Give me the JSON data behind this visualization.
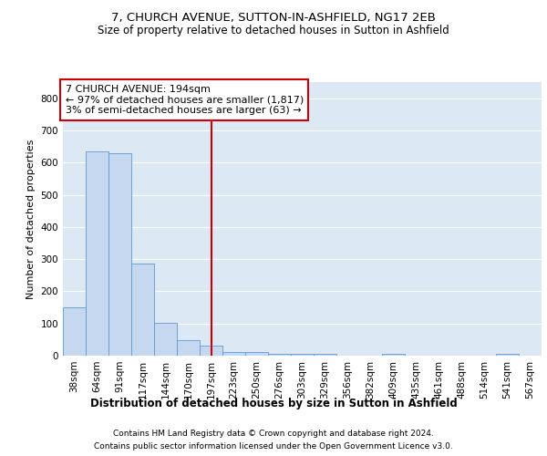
{
  "title1": "7, CHURCH AVENUE, SUTTON-IN-ASHFIELD, NG17 2EB",
  "title2": "Size of property relative to detached houses in Sutton in Ashfield",
  "xlabel": "Distribution of detached houses by size in Sutton in Ashfield",
  "ylabel": "Number of detached properties",
  "categories": [
    "38sqm",
    "64sqm",
    "91sqm",
    "117sqm",
    "144sqm",
    "170sqm",
    "197sqm",
    "223sqm",
    "250sqm",
    "276sqm",
    "303sqm",
    "329sqm",
    "356sqm",
    "382sqm",
    "409sqm",
    "435sqm",
    "461sqm",
    "488sqm",
    "514sqm",
    "541sqm",
    "567sqm"
  ],
  "values": [
    150,
    635,
    630,
    285,
    103,
    48,
    32,
    10,
    10,
    5,
    7,
    7,
    0,
    0,
    7,
    0,
    0,
    0,
    0,
    5,
    0
  ],
  "bar_color": "#c5d8f0",
  "bar_edge_color": "#5b9bd5",
  "vline_index": 6,
  "vline_color": "#cc0000",
  "annotation_text": "7 CHURCH AVENUE: 194sqm\n← 97% of detached houses are smaller (1,817)\n3% of semi-detached houses are larger (63) →",
  "annotation_box_facecolor": "#ffffff",
  "annotation_box_edgecolor": "#cc0000",
  "footnote1": "Contains HM Land Registry data © Crown copyright and database right 2024.",
  "footnote2": "Contains public sector information licensed under the Open Government Licence v3.0.",
  "plot_bgcolor": "#dce9f5",
  "fig_bgcolor": "#ffffff",
  "ylim": [
    0,
    850
  ],
  "yticks": [
    0,
    100,
    200,
    300,
    400,
    500,
    600,
    700,
    800
  ],
  "title1_fontsize": 9.5,
  "title2_fontsize": 8.5,
  "xlabel_fontsize": 8.5,
  "ylabel_fontsize": 8,
  "tick_fontsize": 7.5,
  "annot_fontsize": 8,
  "footnote_fontsize": 6.5
}
